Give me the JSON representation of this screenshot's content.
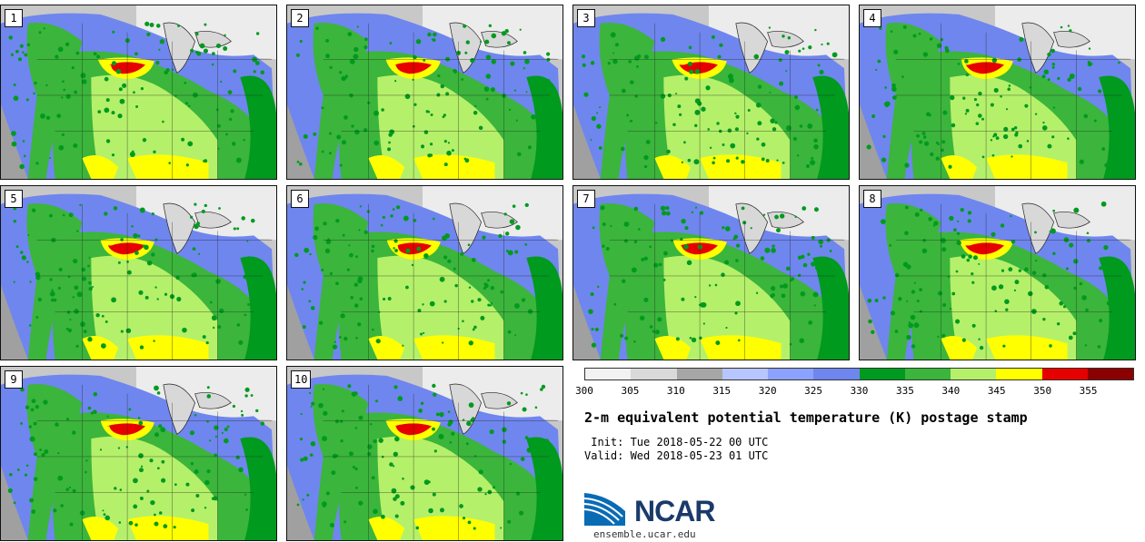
{
  "panels": [
    {
      "label": "1"
    },
    {
      "label": "2"
    },
    {
      "label": "3"
    },
    {
      "label": "4"
    },
    {
      "label": "5"
    },
    {
      "label": "6"
    },
    {
      "label": "7"
    },
    {
      "label": "8"
    },
    {
      "label": "9"
    },
    {
      "label": "10"
    }
  ],
  "colorbar": {
    "colors": [
      "#f2f2f2",
      "#d9d9d9",
      "#a6a6a6",
      "#b7c6ff",
      "#8ca2ff",
      "#6f86ee",
      "#009a1f",
      "#3bb53b",
      "#b5f06a",
      "#ffff00",
      "#e60000",
      "#8b0000"
    ],
    "ticks": [
      "300",
      "305",
      "310",
      "315",
      "320",
      "325",
      "330",
      "335",
      "340",
      "345",
      "350",
      "355"
    ]
  },
  "title": "2-m equivalent potential temperature (K) postage stamp",
  "init_line": " Init: Tue 2018-05-22 00 UTC",
  "valid_line": "Valid: Wed 2018-05-23 01 UTC",
  "logo": {
    "name": "NCAR",
    "url": "ensemble.ucar.edu",
    "colors": {
      "wave": "#0a6bb5",
      "text": "#1a3a6b"
    }
  },
  "map_colors": {
    "land_gray": "#d0d0d0",
    "ocean_gray": "#c8c8c8",
    "lakes": "#d8d8d8",
    "blue": "#6f86ee",
    "light_blue": "#8ca2ff",
    "green": "#3bb53b",
    "dark_green": "#009a1f",
    "lime": "#b5f06a",
    "yellow": "#ffff00",
    "red": "#e60000"
  }
}
